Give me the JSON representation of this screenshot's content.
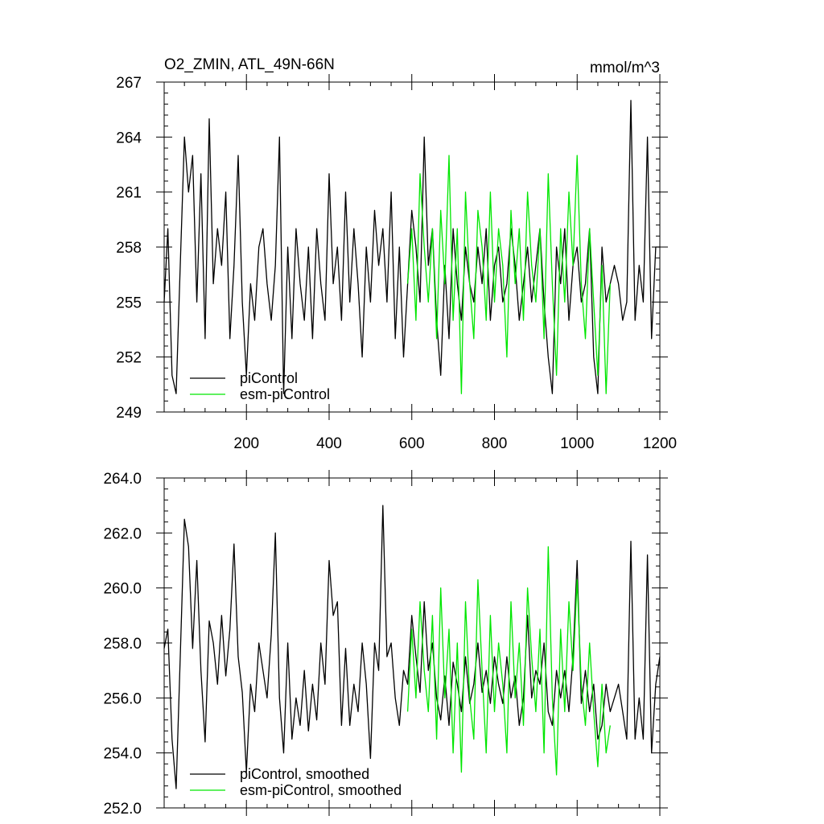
{
  "colors": {
    "picontrol": "#000000",
    "esm_picontrol": "#00e600"
  },
  "chart_data": [
    {
      "type": "line",
      "title": "O2_ZMIN, ATL_49N-66N",
      "units": "mmol/m^3",
      "xlim": [
        1,
        1200
      ],
      "ylim": [
        249,
        267
      ],
      "x_ticks": [
        "200",
        "400",
        "600",
        "800",
        "1000",
        "1200"
      ],
      "y_ticks": [
        "249",
        "252",
        "255",
        "258",
        "261",
        "264",
        "267"
      ],
      "legend_position": "bottom-left",
      "series": [
        {
          "name": "piControl",
          "color": "#000000",
          "x": [
            1,
            10,
            20,
            30,
            40,
            50,
            60,
            70,
            80,
            90,
            100,
            110,
            120,
            130,
            140,
            150,
            160,
            170,
            180,
            190,
            200,
            210,
            220,
            230,
            240,
            250,
            260,
            270,
            280,
            290,
            300,
            310,
            320,
            330,
            340,
            350,
            360,
            370,
            380,
            390,
            400,
            410,
            420,
            430,
            440,
            450,
            460,
            470,
            480,
            490,
            500,
            510,
            520,
            530,
            540,
            550,
            560,
            570,
            580,
            590,
            600,
            610,
            620,
            630,
            640,
            650,
            660,
            670,
            680,
            690,
            700,
            710,
            720,
            730,
            740,
            750,
            760,
            770,
            780,
            790,
            800,
            810,
            820,
            830,
            840,
            850,
            860,
            870,
            880,
            890,
            900,
            910,
            920,
            930,
            940,
            950,
            960,
            970,
            980,
            990,
            1000,
            1010,
            1020,
            1030,
            1040,
            1050,
            1060,
            1070,
            1080,
            1090,
            1100,
            1110,
            1120,
            1130,
            1140,
            1150,
            1160,
            1170,
            1180,
            1190,
            1200
          ],
          "values": [
            255,
            259,
            251,
            250,
            257,
            264,
            261,
            263,
            255,
            262,
            253,
            265,
            256,
            259,
            257,
            261,
            253,
            257,
            263,
            255,
            251,
            256,
            254,
            258,
            259,
            256,
            254,
            257,
            264,
            250,
            258,
            253,
            259,
            256,
            254,
            258,
            253,
            259,
            256,
            254,
            262,
            256,
            258,
            254,
            261,
            255,
            259,
            256,
            252,
            258,
            255,
            260,
            257,
            259,
            255,
            261,
            253,
            258,
            252,
            256,
            260,
            258,
            255,
            264,
            257,
            259,
            254,
            251,
            257,
            253,
            259,
            256,
            254,
            258,
            256,
            255,
            258,
            256,
            259,
            254,
            257,
            258,
            255,
            256,
            259,
            257,
            254,
            256,
            258,
            255,
            257,
            259,
            255,
            252,
            250,
            258,
            256,
            259,
            254,
            257,
            258,
            255,
            256,
            259,
            252,
            250,
            258,
            255,
            256,
            257,
            256,
            254,
            255,
            266,
            254,
            257,
            255,
            264,
            253,
            258,
            258
          ]
        },
        {
          "name": "esm-piControl",
          "color": "#00e600",
          "x": [
            590,
            600,
            610,
            620,
            630,
            640,
            650,
            660,
            670,
            680,
            690,
            700,
            710,
            720,
            730,
            740,
            750,
            760,
            770,
            780,
            790,
            800,
            810,
            820,
            830,
            840,
            850,
            860,
            870,
            880,
            890,
            900,
            910,
            920,
            930,
            940,
            950,
            960,
            970,
            980,
            990,
            1000,
            1010,
            1020,
            1030,
            1040,
            1050,
            1060,
            1070,
            1080
          ],
          "values": [
            256,
            259,
            254,
            262,
            258,
            255,
            259,
            253,
            260,
            256,
            263,
            254,
            259,
            250,
            261,
            256,
            253,
            260,
            258,
            254,
            261,
            255,
            259,
            257,
            252,
            260,
            256,
            259,
            254,
            261,
            257,
            255,
            259,
            253,
            262,
            256,
            251,
            259,
            255,
            261,
            257,
            263,
            256,
            253,
            259,
            255,
            251,
            257,
            250,
            256
          ]
        }
      ]
    },
    {
      "type": "line",
      "title": "",
      "xlim": [
        1,
        1200
      ],
      "ylim": [
        252.0,
        264.0
      ],
      "y_ticks": [
        "252.0",
        "254.0",
        "256.0",
        "258.0",
        "260.0",
        "262.0",
        "264.0"
      ],
      "legend_position": "bottom-left",
      "series": [
        {
          "name": "piControl, smoothed",
          "color": "#000000",
          "x": [
            1,
            10,
            20,
            30,
            40,
            50,
            60,
            70,
            80,
            90,
            100,
            110,
            120,
            130,
            140,
            150,
            160,
            170,
            180,
            190,
            200,
            210,
            220,
            230,
            240,
            250,
            260,
            270,
            280,
            290,
            300,
            310,
            320,
            330,
            340,
            350,
            360,
            370,
            380,
            390,
            400,
            410,
            420,
            430,
            440,
            450,
            460,
            470,
            480,
            490,
            500,
            510,
            520,
            530,
            540,
            550,
            560,
            570,
            580,
            590,
            600,
            610,
            620,
            630,
            640,
            650,
            660,
            670,
            680,
            690,
            700,
            710,
            720,
            730,
            740,
            750,
            760,
            770,
            780,
            790,
            800,
            810,
            820,
            830,
            840,
            850,
            860,
            870,
            880,
            890,
            900,
            910,
            920,
            930,
            940,
            950,
            960,
            970,
            980,
            990,
            1000,
            1010,
            1020,
            1030,
            1040,
            1050,
            1060,
            1070,
            1080,
            1090,
            1100,
            1110,
            1120,
            1130,
            1140,
            1150,
            1160,
            1170,
            1180,
            1190,
            1200
          ],
          "values": [
            257.8,
            258.5,
            254.5,
            252.7,
            257.5,
            262.5,
            261.5,
            257.8,
            261.0,
            257.0,
            254.4,
            258.8,
            258.0,
            256.5,
            259.0,
            256.8,
            258.5,
            261.6,
            257.5,
            256.2,
            253.3,
            256.5,
            255.5,
            258.0,
            257.0,
            256.0,
            258.3,
            262.0,
            256.0,
            254.0,
            258.0,
            254.5,
            256.0,
            255.0,
            257.0,
            254.8,
            256.5,
            255.2,
            258.0,
            256.5,
            261.0,
            259.0,
            259.5,
            255.0,
            257.8,
            255.0,
            256.5,
            255.5,
            258.0,
            256.5,
            253.8,
            258.0,
            257.0,
            263.0,
            257.5,
            258.0,
            256.0,
            255.0,
            257.0,
            256.5,
            259.0,
            257.5,
            256.2,
            259.5,
            257.0,
            258.0,
            256.0,
            255.2,
            256.8,
            255.0,
            257.3,
            256.5,
            255.5,
            257.5,
            255.8,
            256.5,
            258.0,
            256.2,
            257.0,
            255.8,
            257.5,
            256.5,
            255.8,
            257.5,
            256.0,
            256.8,
            255.0,
            256.0,
            259.0,
            256.0,
            257.0,
            256.5,
            258.0,
            255.5,
            255.0,
            257.0,
            256.0,
            257.0,
            255.5,
            257.5,
            261.0,
            255.8,
            257.0,
            255.5,
            256.5,
            254.5,
            255.0,
            256.5,
            255.5,
            256.0,
            256.5,
            255.5,
            254.5,
            261.7,
            254.5,
            256.0,
            254.5,
            261.2,
            254.0,
            256.5,
            257.5
          ]
        },
        {
          "name": "esm-piControl, smoothed",
          "color": "#00e600",
          "x": [
            590,
            600,
            610,
            620,
            630,
            640,
            650,
            660,
            670,
            680,
            690,
            700,
            710,
            720,
            730,
            740,
            750,
            760,
            770,
            780,
            790,
            800,
            810,
            820,
            830,
            840,
            850,
            860,
            870,
            880,
            890,
            900,
            910,
            920,
            930,
            940,
            950,
            960,
            970,
            980,
            990,
            1000,
            1010,
            1020,
            1030,
            1040,
            1050,
            1060,
            1070,
            1080
          ],
          "values": [
            255.5,
            258.5,
            256.0,
            259.5,
            257.0,
            255.5,
            259.0,
            254.5,
            260.0,
            256.0,
            258.5,
            254.0,
            258.0,
            253.3,
            259.5,
            256.0,
            254.5,
            260.3,
            257.0,
            254.0,
            259.0,
            255.5,
            258.0,
            256.5,
            254.0,
            259.5,
            256.0,
            258.0,
            255.0,
            260.0,
            257.5,
            255.5,
            258.5,
            254.0,
            261.5,
            256.0,
            253.2,
            258.5,
            255.5,
            259.5,
            257.0,
            260.3,
            256.5,
            255.0,
            258.0,
            255.5,
            253.5,
            256.5,
            254.0,
            255.0
          ]
        }
      ]
    }
  ]
}
